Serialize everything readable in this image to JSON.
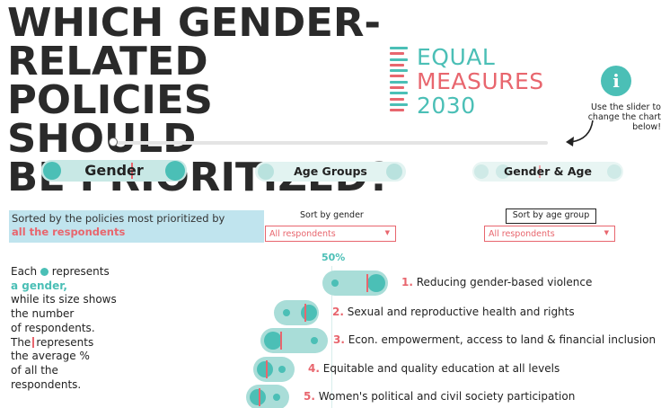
{
  "title": {
    "line1": "WHICH GENDER-RELATED",
    "line2": "POLICIES SHOULD",
    "line3": "BE PRIORITIZED?"
  },
  "logo": {
    "line1": "EQUAL",
    "line2": "MEASURES",
    "line3": "2030",
    "bar_colors": [
      "#4bbfb6",
      "#e8666e",
      "#4bbfb6",
      "#e8666e",
      "#4bbfb6",
      "#e8666e",
      "#4bbfb6",
      "#e8666e",
      "#4bbfb6",
      "#e8666e",
      "#4bbfb6",
      "#e8666e"
    ]
  },
  "info": {
    "icon_glyph": "i",
    "note": "Use the slider to change the chart below!"
  },
  "slider": {
    "position": 0
  },
  "tabs": [
    {
      "label": "Gender",
      "active": true
    },
    {
      "label": "Age Groups",
      "active": false
    },
    {
      "label": "Gender & Age",
      "active": false
    }
  ],
  "sorted_by": {
    "prefix": "Sorted by the policies most prioritized by",
    "highlight": "all the respondents"
  },
  "sort_gender": {
    "label": "Sort by gender",
    "selected": "All respondents"
  },
  "sort_age": {
    "label": "Sort by age group",
    "selected": "All respondents"
  },
  "legend": {
    "each": "Each",
    "represents": "represents",
    "highlight": "a gender,",
    "rest1": "while its size shows",
    "rest2": "the number",
    "rest3": "of respondents.",
    "the": "The",
    "rest4": "represents",
    "rest5": "the average %",
    "rest6": "of all the",
    "rest7": "respondents."
  },
  "chart_data": {
    "type": "scatter",
    "reference_label": "50%",
    "rows": [
      {
        "num": "1.",
        "label": "Reducing gender-based violence"
      },
      {
        "num": "2.",
        "label": "Sexual and reproductive health and rights"
      },
      {
        "num": "3.",
        "label": "Econ. empowerment, access to land & financial inclusion"
      },
      {
        "num": "4.",
        "label": "Equitable and quality education at all levels"
      },
      {
        "num": "5.",
        "label": "Women's political and civil society participation"
      }
    ]
  },
  "colors": {
    "teal": "#4bbfb6",
    "coral": "#e8666e",
    "pill": "#a9ddd8",
    "sort_box": "#c0e4ee"
  }
}
